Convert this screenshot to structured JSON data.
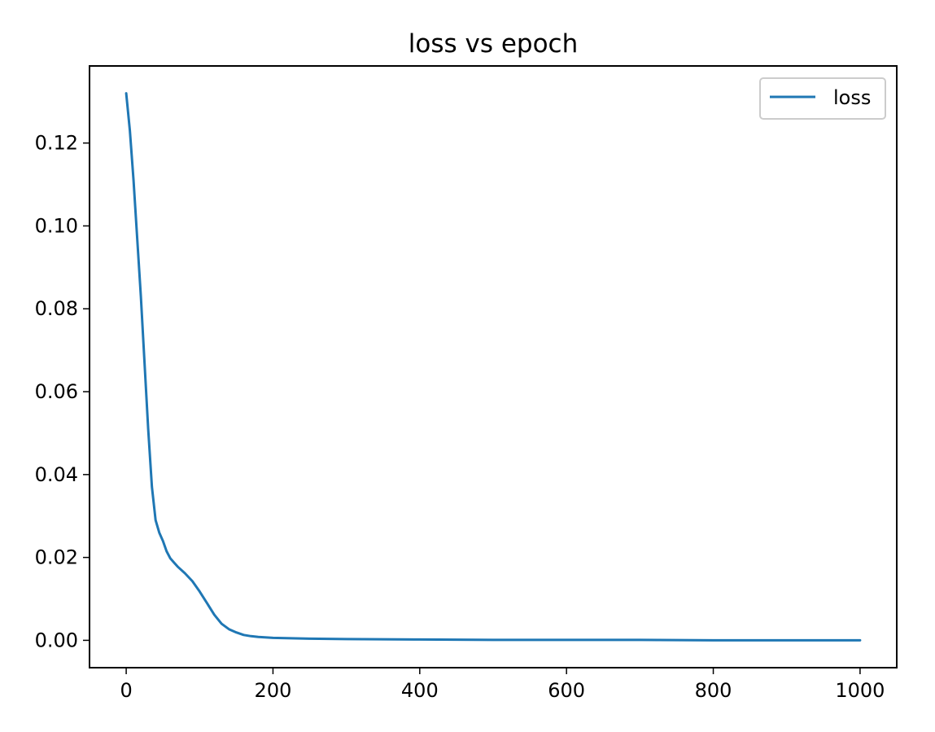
{
  "chart_data": {
    "type": "line",
    "title": "loss vs epoch",
    "xlabel": "",
    "ylabel": "",
    "xlim": [
      -50,
      1050
    ],
    "ylim": [
      -0.0066,
      0.1386
    ],
    "xticks": [
      0,
      200,
      400,
      600,
      800,
      1000
    ],
    "xtick_labels": [
      "0",
      "200",
      "400",
      "600",
      "800",
      "1000"
    ],
    "yticks": [
      0.0,
      0.02,
      0.04,
      0.06,
      0.08,
      0.1,
      0.12
    ],
    "ytick_labels": [
      "0.00",
      "0.02",
      "0.04",
      "0.06",
      "0.08",
      "0.10",
      "0.12"
    ],
    "grid": false,
    "legend": "top-right",
    "colors": {
      "loss": "#1f77b4"
    },
    "series": [
      {
        "name": "loss",
        "x": [
          0,
          5,
          10,
          15,
          20,
          25,
          30,
          35,
          40,
          45,
          50,
          55,
          60,
          65,
          70,
          80,
          90,
          100,
          110,
          120,
          130,
          140,
          150,
          160,
          170,
          180,
          200,
          250,
          300,
          400,
          500,
          600,
          700,
          800,
          900,
          1000
        ],
        "y": [
          0.132,
          0.123,
          0.111,
          0.097,
          0.083,
          0.067,
          0.051,
          0.037,
          0.029,
          0.026,
          0.024,
          0.0215,
          0.0198,
          0.0188,
          0.0178,
          0.0162,
          0.0143,
          0.0118,
          0.009,
          0.0062,
          0.004,
          0.0027,
          0.0019,
          0.0013,
          0.001,
          0.0008,
          0.0006,
          0.0004,
          0.0003,
          0.0002,
          0.0001,
          0.0001,
          0.0001,
          0.0,
          0.0,
          0.0
        ]
      }
    ]
  }
}
